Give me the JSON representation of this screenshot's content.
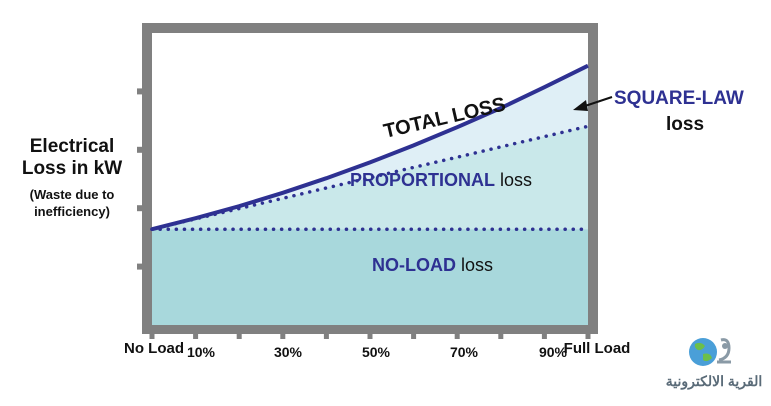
{
  "chart_data": {
    "type": "area",
    "ylabel": "Electrical Loss in kW",
    "ylabel_note": "(Waste due to inefficiency)",
    "x_start_label": "No Load",
    "x_end_label": "Full Load",
    "x_tick_labels": [
      "10%",
      "30%",
      "50%",
      "70%",
      "90%"
    ],
    "x": [
      0,
      10,
      20,
      30,
      40,
      50,
      60,
      70,
      80,
      90,
      100
    ],
    "xlim": [
      0,
      100
    ],
    "ylim": [
      0,
      100
    ],
    "series": [
      {
        "name": "NO-LOAD loss",
        "values": [
          40,
          40,
          40,
          40,
          40,
          40,
          40,
          40,
          40,
          40,
          40
        ]
      },
      {
        "name": "PROPORTIONAL loss",
        "values": [
          40,
          44.3,
          48.6,
          52.9,
          57.2,
          61.5,
          65.8,
          70.1,
          74.4,
          78.7,
          83
        ]
      },
      {
        "name": "TOTAL LOSS",
        "values": [
          40,
          44.6,
          49.6,
          55.2,
          61.3,
          67.9,
          75.0,
          82.6,
          90.6,
          99.3,
          108.3
        ]
      }
    ],
    "colors": {
      "no_load_fill": "#a8d8dc",
      "proportional_fill": "#c9e8ea",
      "square_law_fill": "#dfeff6",
      "line": "#2e3192",
      "frame": "#808080"
    }
  },
  "annotations": {
    "total_loss": "TOTAL LOSS",
    "square_law_1": "SQUARE-LAW",
    "square_law_2": "loss",
    "proportional_1": "PROPORTIONAL",
    "proportional_2": " loss",
    "no_load_1": "NO-LOAD",
    "no_load_2": " loss"
  },
  "logo": {
    "icon": "globe-logo-icon",
    "text": "القرية الالكترونية"
  }
}
